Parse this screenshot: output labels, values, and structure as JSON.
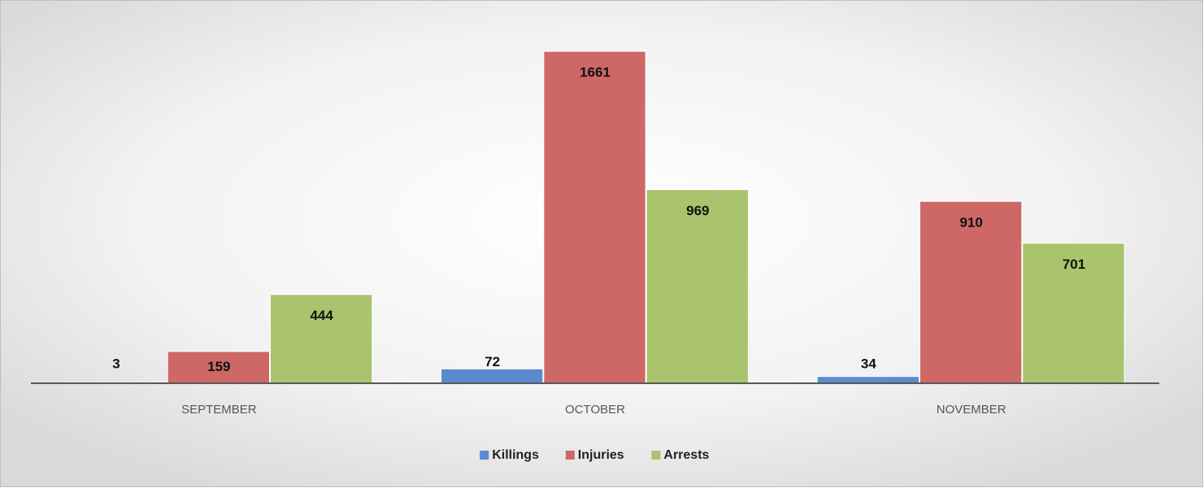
{
  "chart_data": {
    "type": "bar",
    "categories": [
      "SEPTEMBER",
      "OCTOBER",
      "NOVEMBER"
    ],
    "series": [
      {
        "name": "Killings",
        "color": "#5b8bcf",
        "values": [
          3,
          72,
          34
        ]
      },
      {
        "name": "Injuries",
        "color": "#cd6866",
        "values": [
          159,
          1661,
          910
        ]
      },
      {
        "name": "Arrests",
        "color": "#a9c46c",
        "values": [
          444,
          969,
          701
        ]
      }
    ],
    "ylim": [
      0,
      1800
    ],
    "legend": "bottom"
  }
}
